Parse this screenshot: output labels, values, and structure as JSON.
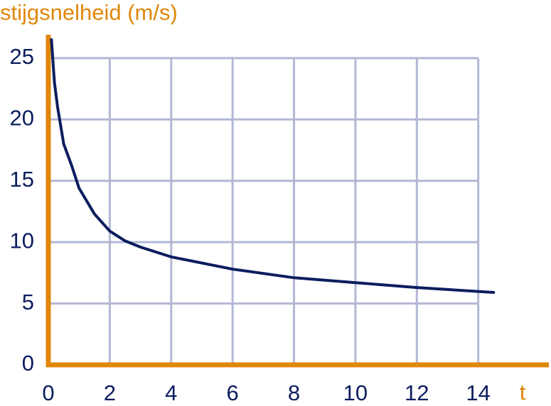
{
  "chart_data": {
    "type": "line",
    "y_label": "stijgsnelheid (m/s)",
    "x_label": "t",
    "x": [
      0.1,
      0.2,
      0.3,
      0.5,
      0.75,
      1,
      1.5,
      2,
      2.5,
      3,
      4,
      6,
      8,
      10,
      12,
      14.5
    ],
    "series": [
      {
        "name": "stijgsnelheid",
        "color": "#0b1d5e",
        "values": [
          26.5,
          23,
          21,
          18,
          16.3,
          14.4,
          12.3,
          10.9,
          10.1,
          9.6,
          8.8,
          7.8,
          7.1,
          6.7,
          6.3,
          5.9
        ]
      }
    ],
    "xlim": [
      0,
      16.3
    ],
    "ylim": [
      0,
      26.9
    ],
    "xticks": [
      0,
      2,
      4,
      6,
      8,
      10,
      12,
      14
    ],
    "yticks": [
      0,
      5,
      10,
      15,
      20,
      25
    ],
    "grid": true,
    "axis_color": "#e0870a",
    "grid_color": "#b3b7d6",
    "tick_color": "#0b1d5e"
  }
}
